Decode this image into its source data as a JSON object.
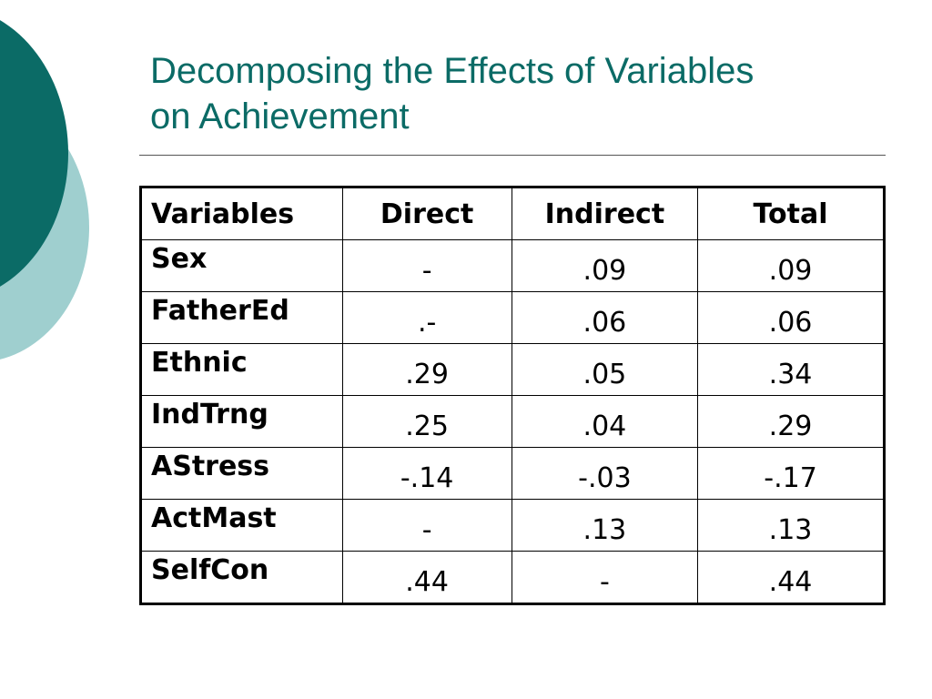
{
  "title": {
    "line1": "Decomposing the Effects of Variables",
    "line2": "on Achievement"
  },
  "colors": {
    "title": "#0b6b66",
    "circle_dark": "#0b6b66",
    "circle_light": "#9fcfcf"
  },
  "table": {
    "headers": [
      "Variables",
      "Direct",
      "Indirect",
      "Total"
    ],
    "rows": [
      {
        "variable": "Sex",
        "direct": "-",
        "indirect": ".09",
        "total": ".09"
      },
      {
        "variable": "FatherEd",
        "direct": ".-",
        "indirect": ".06",
        "total": ".06"
      },
      {
        "variable": "Ethnic",
        "direct": ".29",
        "indirect": ".05",
        "total": ".34"
      },
      {
        "variable": "IndTrng",
        "direct": ".25",
        "indirect": ".04",
        "total": ".29"
      },
      {
        "variable": "AStress",
        "direct": "-.14",
        "indirect": "-.03",
        "total": "-.17"
      },
      {
        "variable": "ActMast",
        "direct": "-",
        "indirect": ".13",
        "total": ".13"
      },
      {
        "variable": "SelfCon",
        "direct": ".44",
        "indirect": "-",
        "total": ".44"
      }
    ]
  }
}
